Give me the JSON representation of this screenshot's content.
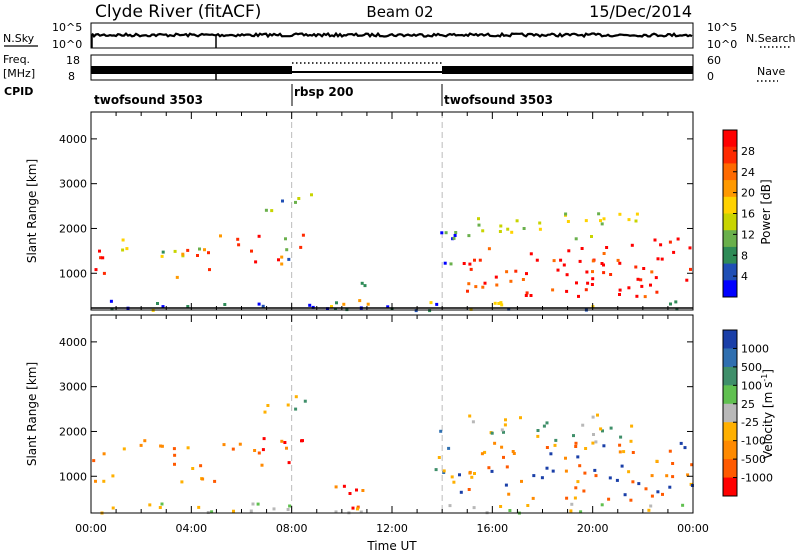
{
  "header": {
    "station": "Clyde River (fitACF)",
    "beam": "Beam 02",
    "date": "15/Dec/2014"
  },
  "strips": {
    "nsky": {
      "label": "N.Sky",
      "left_ticks": [
        "10^5",
        "10^0"
      ],
      "right_ticks": [
        "10^5",
        "10^0"
      ],
      "right_label": "N.Search"
    },
    "freq": {
      "label_line1": "Freq.",
      "label_line2": "[MHz]",
      "left_ticks": [
        "18",
        "8"
      ],
      "right_ticks": [
        "60",
        "0"
      ],
      "right_label": "Nave"
    },
    "cpid": {
      "label": "CPID",
      "segments": [
        {
          "name": "twofsound 3503",
          "start_h": 0,
          "end_h": 8
        },
        {
          "name": "rbsp 200",
          "start_h": 8,
          "end_h": 14
        },
        {
          "name": "twofsound 3503",
          "start_h": 14,
          "end_h": 24
        }
      ]
    }
  },
  "chart_data": [
    {
      "type": "heatmap",
      "name": "Power",
      "xlabel": "",
      "ylabel": "Slant Range [km]",
      "xlim": [
        0,
        24
      ],
      "ylim": [
        180,
        4600
      ],
      "y_ticks": [
        1000,
        2000,
        3000,
        4000
      ],
      "x_ticks": [
        "00:00",
        "04:00",
        "08:00",
        "12:00",
        "16:00",
        "20:00",
        "00:00"
      ],
      "colorbar": {
        "label": "Power [dB]",
        "ticks": [
          "4",
          "8",
          "12",
          "16",
          "20",
          "24",
          "28"
        ],
        "range": [
          0,
          30
        ],
        "colors": [
          "#0000ff",
          "#1f4fb5",
          "#2e8b57",
          "#6ab04c",
          "#c8d400",
          "#ffd200",
          "#ff9900",
          "#ff6a00",
          "#ff2a00",
          "#ff0000"
        ]
      }
    },
    {
      "type": "heatmap",
      "name": "Velocity",
      "xlabel": "Time UT",
      "ylabel": "Slant Range [km]",
      "xlim": [
        0,
        24
      ],
      "ylim": [
        180,
        4600
      ],
      "y_ticks": [
        1000,
        2000,
        3000,
        4000
      ],
      "x_ticks": [
        "00:00",
        "04:00",
        "08:00",
        "12:00",
        "16:00",
        "20:00",
        "00:00"
      ],
      "colorbar": {
        "label": "Velocity [m s^-1]",
        "ticks": [
          "1000",
          "500",
          "100",
          "25",
          "-25",
          "-100",
          "-500",
          "-1000"
        ],
        "colors": [
          "#1a3fa8",
          "#2f6fb0",
          "#3f8f6a",
          "#60c050",
          "#b8b8b8",
          "#ffb000",
          "#ff8a00",
          "#ff5a00",
          "#ff0000"
        ]
      }
    }
  ]
}
